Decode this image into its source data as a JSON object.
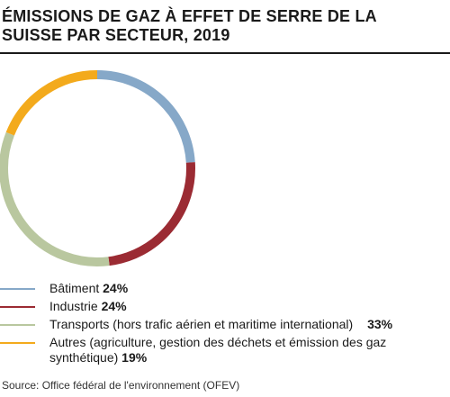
{
  "chart_data": {
    "type": "pie",
    "title": "ÉMISSIONS DE GAZ À EFFET DE SERRE DE LA\nSUISSE PAR SECTEUR, 2019",
    "categories": [
      "Bâtiment",
      "Industrie",
      "Transports (hors trafic aérien et maritime international)",
      "Autres (agriculture, gestion des déchets et émission des gaz synthétique)"
    ],
    "values": [
      24,
      24,
      33,
      19
    ],
    "value_labels": [
      "24%",
      "24%",
      "33%",
      "19%"
    ],
    "colors": [
      "#86a8c8",
      "#9b2b33",
      "#b9c79f",
      "#f3aa1c"
    ],
    "legend_placement": "bottom"
  },
  "source": "Source: Office fédéral de l'environnement (OFEV)"
}
